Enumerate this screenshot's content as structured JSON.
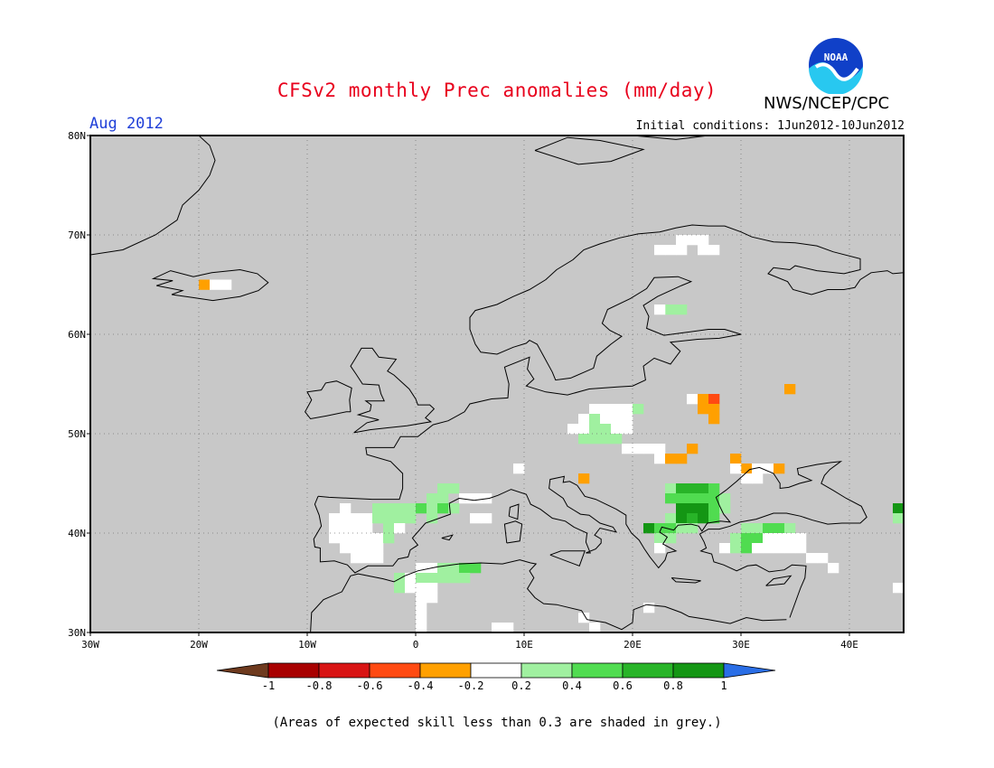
{
  "header": {
    "title": "CFSv2 monthly Prec anomalies (mm/day)",
    "org": "NWS/NCEP/CPC",
    "period": "Aug 2012",
    "initial_conditions": "Initial conditions: 1Jun2012-10Jun2012",
    "logo_icon": "noaa-logo-icon",
    "logo_text": "NOAA"
  },
  "map": {
    "region": "Europe",
    "lon_range": [
      -30,
      45
    ],
    "lat_range": [
      30,
      80
    ],
    "lon_ticks": [
      "30W",
      "20W",
      "10W",
      "0",
      "10E",
      "20E",
      "30E",
      "40E"
    ],
    "lat_ticks": [
      "80N",
      "70N",
      "60N",
      "50N",
      "40N",
      "30N"
    ],
    "no_skill_color": "#c8c8c8",
    "coast_color": "#000000",
    "cells": [
      {
        "lon": -20,
        "lat": 64.5,
        "v": -0.3
      },
      {
        "lon": -19,
        "lat": 64.5,
        "v": 0
      },
      {
        "lon": -18,
        "lat": 64.5,
        "v": 0
      },
      {
        "lon": 22,
        "lat": 68,
        "v": 0
      },
      {
        "lon": 23,
        "lat": 68,
        "v": 0
      },
      {
        "lon": 24,
        "lat": 68,
        "v": 0
      },
      {
        "lon": 26,
        "lat": 68,
        "v": 0
      },
      {
        "lon": 27,
        "lat": 68,
        "v": 0
      },
      {
        "lon": 24,
        "lat": 69,
        "v": 0
      },
      {
        "lon": 25,
        "lat": 69,
        "v": 0
      },
      {
        "lon": 26,
        "lat": 69,
        "v": 0
      },
      {
        "lon": 23,
        "lat": 62,
        "v": 0.3
      },
      {
        "lon": 24,
        "lat": 62,
        "v": 0.3
      },
      {
        "lon": 22,
        "lat": 62,
        "v": 0
      },
      {
        "lon": 16,
        "lat": 52,
        "v": 0
      },
      {
        "lon": 17,
        "lat": 52,
        "v": 0
      },
      {
        "lon": 18,
        "lat": 52,
        "v": 0
      },
      {
        "lon": 19,
        "lat": 52,
        "v": 0
      },
      {
        "lon": 15,
        "lat": 51,
        "v": 0
      },
      {
        "lon": 16,
        "lat": 51,
        "v": 0.3
      },
      {
        "lon": 17,
        "lat": 51,
        "v": 0
      },
      {
        "lon": 18,
        "lat": 51,
        "v": 0
      },
      {
        "lon": 19,
        "lat": 51,
        "v": 0
      },
      {
        "lon": 20,
        "lat": 52,
        "v": 0.3
      },
      {
        "lon": 14,
        "lat": 50,
        "v": 0
      },
      {
        "lon": 15,
        "lat": 50,
        "v": 0
      },
      {
        "lon": 16,
        "lat": 50,
        "v": 0.3
      },
      {
        "lon": 17,
        "lat": 50,
        "v": 0.3
      },
      {
        "lon": 18,
        "lat": 50,
        "v": 0
      },
      {
        "lon": 19,
        "lat": 50,
        "v": 0
      },
      {
        "lon": 15,
        "lat": 49,
        "v": 0.3
      },
      {
        "lon": 16,
        "lat": 49,
        "v": 0.3
      },
      {
        "lon": 17,
        "lat": 49,
        "v": 0.3
      },
      {
        "lon": 18,
        "lat": 49,
        "v": 0.3
      },
      {
        "lon": 19,
        "lat": 48,
        "v": 0
      },
      {
        "lon": 20,
        "lat": 48,
        "v": 0
      },
      {
        "lon": 21,
        "lat": 48,
        "v": 0
      },
      {
        "lon": 22,
        "lat": 48,
        "v": 0
      },
      {
        "lon": 22,
        "lat": 47,
        "v": 0
      },
      {
        "lon": 23,
        "lat": 47,
        "v": -0.3
      },
      {
        "lon": 24,
        "lat": 47,
        "v": -0.3
      },
      {
        "lon": 25,
        "lat": 48,
        "v": -0.3
      },
      {
        "lon": 25,
        "lat": 53,
        "v": 0
      },
      {
        "lon": 26,
        "lat": 53,
        "v": -0.3
      },
      {
        "lon": 27,
        "lat": 53,
        "v": -0.5
      },
      {
        "lon": 26,
        "lat": 52,
        "v": -0.3
      },
      {
        "lon": 27,
        "lat": 52,
        "v": -0.3
      },
      {
        "lon": 27,
        "lat": 51,
        "v": -0.3
      },
      {
        "lon": 34,
        "lat": 54,
        "v": -0.3
      },
      {
        "lon": 29,
        "lat": 47,
        "v": -0.3
      },
      {
        "lon": 30,
        "lat": 46,
        "v": -0.3
      },
      {
        "lon": 29,
        "lat": 46,
        "v": 0
      },
      {
        "lon": 31,
        "lat": 46,
        "v": 0
      },
      {
        "lon": 32,
        "lat": 46,
        "v": 0
      },
      {
        "lon": 33,
        "lat": 46,
        "v": -0.3
      },
      {
        "lon": 30,
        "lat": 45,
        "v": 0
      },
      {
        "lon": 31,
        "lat": 45,
        "v": 0
      },
      {
        "lon": 15,
        "lat": 45,
        "v": -0.3
      },
      {
        "lon": 9,
        "lat": 46,
        "v": 0
      },
      {
        "lon": 23,
        "lat": 44,
        "v": 0.3
      },
      {
        "lon": 24,
        "lat": 44,
        "v": 0.7
      },
      {
        "lon": 25,
        "lat": 44,
        "v": 0.7
      },
      {
        "lon": 26,
        "lat": 44,
        "v": 0.7
      },
      {
        "lon": 27,
        "lat": 44,
        "v": 0.5
      },
      {
        "lon": 23,
        "lat": 43,
        "v": 0.5
      },
      {
        "lon": 24,
        "lat": 43,
        "v": 0.5
      },
      {
        "lon": 25,
        "lat": 43,
        "v": 0.5
      },
      {
        "lon": 26,
        "lat": 43,
        "v": 0.5
      },
      {
        "lon": 27,
        "lat": 43,
        "v": 0.5
      },
      {
        "lon": 28,
        "lat": 43,
        "v": 0.3
      },
      {
        "lon": 24,
        "lat": 42,
        "v": 0.9
      },
      {
        "lon": 25,
        "lat": 42,
        "v": 0.9
      },
      {
        "lon": 26,
        "lat": 42,
        "v": 0.9
      },
      {
        "lon": 27,
        "lat": 42,
        "v": 0.5
      },
      {
        "lon": 28,
        "lat": 42,
        "v": 0.3
      },
      {
        "lon": 23,
        "lat": 41,
        "v": 0.3
      },
      {
        "lon": 24,
        "lat": 41,
        "v": 0.9
      },
      {
        "lon": 25,
        "lat": 41,
        "v": 0.7
      },
      {
        "lon": 26,
        "lat": 41,
        "v": 0.9
      },
      {
        "lon": 27,
        "lat": 41,
        "v": 0.5
      },
      {
        "lon": 21,
        "lat": 40,
        "v": 0.9
      },
      {
        "lon": 22,
        "lat": 40,
        "v": 0.5
      },
      {
        "lon": 23,
        "lat": 40,
        "v": 0.5
      },
      {
        "lon": 24,
        "lat": 40,
        "v": 0.3
      },
      {
        "lon": 25,
        "lat": 40,
        "v": 0.3
      },
      {
        "lon": 22,
        "lat": 39,
        "v": 0.3
      },
      {
        "lon": 23,
        "lat": 39,
        "v": 0.3
      },
      {
        "lon": 22,
        "lat": 38,
        "v": 0
      },
      {
        "lon": 30,
        "lat": 40,
        "v": 0.3
      },
      {
        "lon": 31,
        "lat": 40,
        "v": 0.3
      },
      {
        "lon": 32,
        "lat": 40,
        "v": 0.5
      },
      {
        "lon": 33,
        "lat": 40,
        "v": 0.5
      },
      {
        "lon": 34,
        "lat": 40,
        "v": 0.3
      },
      {
        "lon": 29,
        "lat": 39,
        "v": 0.3
      },
      {
        "lon": 30,
        "lat": 39,
        "v": 0.5
      },
      {
        "lon": 31,
        "lat": 39,
        "v": 0.5
      },
      {
        "lon": 32,
        "lat": 39,
        "v": 0
      },
      {
        "lon": 33,
        "lat": 39,
        "v": 0
      },
      {
        "lon": 34,
        "lat": 39,
        "v": 0
      },
      {
        "lon": 35,
        "lat": 39,
        "v": 0
      },
      {
        "lon": 28,
        "lat": 38,
        "v": 0
      },
      {
        "lon": 29,
        "lat": 38,
        "v": 0.3
      },
      {
        "lon": 30,
        "lat": 38,
        "v": 0.5
      },
      {
        "lon": 31,
        "lat": 38,
        "v": 0
      },
      {
        "lon": 32,
        "lat": 38,
        "v": 0
      },
      {
        "lon": 33,
        "lat": 38,
        "v": 0
      },
      {
        "lon": 34,
        "lat": 38,
        "v": 0
      },
      {
        "lon": 35,
        "lat": 38,
        "v": 0
      },
      {
        "lon": 36,
        "lat": 37,
        "v": 0
      },
      {
        "lon": 37,
        "lat": 37,
        "v": 0
      },
      {
        "lon": 38,
        "lat": 36,
        "v": 0
      },
      {
        "lon": 44,
        "lat": 42,
        "v": 0.9
      },
      {
        "lon": 44,
        "lat": 41,
        "v": 0.3
      },
      {
        "lon": 44,
        "lat": 34,
        "v": 0
      },
      {
        "lon": 2,
        "lat": 44,
        "v": 0.3
      },
      {
        "lon": 3,
        "lat": 44,
        "v": 0.3
      },
      {
        "lon": 4,
        "lat": 43,
        "v": 0
      },
      {
        "lon": 5,
        "lat": 43,
        "v": 0
      },
      {
        "lon": 6,
        "lat": 43,
        "v": 0
      },
      {
        "lon": 1,
        "lat": 43,
        "v": 0.3
      },
      {
        "lon": 2,
        "lat": 43,
        "v": 0.3
      },
      {
        "lon": -4,
        "lat": 42,
        "v": 0.3
      },
      {
        "lon": -3,
        "lat": 42,
        "v": 0.3
      },
      {
        "lon": -2,
        "lat": 42,
        "v": 0.3
      },
      {
        "lon": -1,
        "lat": 42,
        "v": 0.3
      },
      {
        "lon": 0,
        "lat": 42,
        "v": 0.5
      },
      {
        "lon": 1,
        "lat": 42,
        "v": 0.3
      },
      {
        "lon": 2,
        "lat": 42,
        "v": 0.5
      },
      {
        "lon": 3,
        "lat": 42,
        "v": 0.3
      },
      {
        "lon": -7,
        "lat": 42,
        "v": 0
      },
      {
        "lon": -8,
        "lat": 41,
        "v": 0
      },
      {
        "lon": -7,
        "lat": 41,
        "v": 0
      },
      {
        "lon": -6,
        "lat": 41,
        "v": 0
      },
      {
        "lon": -5,
        "lat": 41,
        "v": 0
      },
      {
        "lon": -4,
        "lat": 41,
        "v": 0.3
      },
      {
        "lon": -3,
        "lat": 41,
        "v": 0.3
      },
      {
        "lon": -2,
        "lat": 41,
        "v": 0.3
      },
      {
        "lon": -1,
        "lat": 41,
        "v": 0.3
      },
      {
        "lon": 1,
        "lat": 41,
        "v": 0.3
      },
      {
        "lon": -8,
        "lat": 40,
        "v": 0
      },
      {
        "lon": -7,
        "lat": 40,
        "v": 0
      },
      {
        "lon": -6,
        "lat": 40,
        "v": 0
      },
      {
        "lon": -5,
        "lat": 40,
        "v": 0
      },
      {
        "lon": -3,
        "lat": 40,
        "v": 0.3
      },
      {
        "lon": -2,
        "lat": 40,
        "v": 0
      },
      {
        "lon": -8,
        "lat": 39,
        "v": 0
      },
      {
        "lon": -7,
        "lat": 39,
        "v": 0
      },
      {
        "lon": -6,
        "lat": 39,
        "v": 0
      },
      {
        "lon": -5,
        "lat": 39,
        "v": 0
      },
      {
        "lon": -4,
        "lat": 39,
        "v": 0
      },
      {
        "lon": -3,
        "lat": 39,
        "v": 0.3
      },
      {
        "lon": -7,
        "lat": 38,
        "v": 0
      },
      {
        "lon": -6,
        "lat": 38,
        "v": 0
      },
      {
        "lon": -5,
        "lat": 38,
        "v": 0
      },
      {
        "lon": -4,
        "lat": 38,
        "v": 0
      },
      {
        "lon": -6,
        "lat": 37,
        "v": 0
      },
      {
        "lon": -5,
        "lat": 37,
        "v": 0
      },
      {
        "lon": -4,
        "lat": 37,
        "v": 0
      },
      {
        "lon": 0,
        "lat": 36,
        "v": 0
      },
      {
        "lon": 1,
        "lat": 36,
        "v": 0
      },
      {
        "lon": 2,
        "lat": 36,
        "v": 0.3
      },
      {
        "lon": 3,
        "lat": 36,
        "v": 0.3
      },
      {
        "lon": 4,
        "lat": 36,
        "v": 0.5
      },
      {
        "lon": 5,
        "lat": 36,
        "v": 0.5
      },
      {
        "lon": -2,
        "lat": 35,
        "v": 0.3
      },
      {
        "lon": -1,
        "lat": 35,
        "v": 0
      },
      {
        "lon": 0,
        "lat": 35,
        "v": 0.3
      },
      {
        "lon": 1,
        "lat": 35,
        "v": 0.3
      },
      {
        "lon": 2,
        "lat": 35,
        "v": 0.3
      },
      {
        "lon": 3,
        "lat": 35,
        "v": 0.3
      },
      {
        "lon": 4,
        "lat": 35,
        "v": 0.3
      },
      {
        "lon": -2,
        "lat": 34,
        "v": 0.3
      },
      {
        "lon": -1,
        "lat": 34,
        "v": 0
      },
      {
        "lon": 0,
        "lat": 34,
        "v": 0
      },
      {
        "lon": 1,
        "lat": 34,
        "v": 0
      },
      {
        "lon": 0,
        "lat": 33,
        "v": 0
      },
      {
        "lon": 1,
        "lat": 33,
        "v": 0
      },
      {
        "lon": 0,
        "lat": 32,
        "v": 0
      },
      {
        "lon": 0,
        "lat": 31,
        "v": 0
      },
      {
        "lon": 0,
        "lat": 30,
        "v": 0
      },
      {
        "lon": 7,
        "lat": 30,
        "v": 0
      },
      {
        "lon": 8,
        "lat": 30,
        "v": 0
      },
      {
        "lon": 15,
        "lat": 31,
        "v": 0
      },
      {
        "lon": 16,
        "lat": 30,
        "v": 0
      },
      {
        "lon": 21,
        "lat": 32,
        "v": 0
      },
      {
        "lon": 5,
        "lat": 41,
        "v": 0
      },
      {
        "lon": 6,
        "lat": 41,
        "v": 0
      }
    ]
  },
  "colorbar": {
    "labels": [
      "-1",
      "-0.8",
      "-0.6",
      "-0.4",
      "-0.2",
      "0.2",
      "0.4",
      "0.6",
      "0.8",
      "1"
    ],
    "colors": [
      "#6e3a1e",
      "#a80000",
      "#d81414",
      "#ff4a12",
      "#ffa000",
      "#ffffff",
      "#a0f0a0",
      "#50dc50",
      "#28b428",
      "#149614",
      "#2a6ee6"
    ]
  },
  "footnote": "(Areas of expected skill less than 0.3 are shaded in grey.)"
}
